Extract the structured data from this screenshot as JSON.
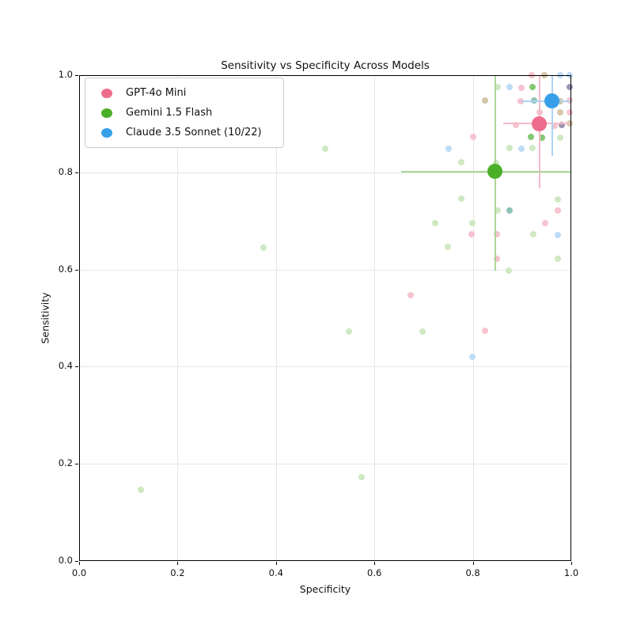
{
  "chart_data": {
    "type": "scatter",
    "title": "Sensitivity vs Specificity Across Models",
    "xlabel": "Specificity",
    "ylabel": "Sensitivity",
    "xlim": [
      0.0,
      1.0
    ],
    "ylim": [
      0.0,
      1.0
    ],
    "xticks": [
      "0.0",
      "0.2",
      "0.4",
      "0.6",
      "0.8",
      "1.0"
    ],
    "yticks": [
      "0.0",
      "0.2",
      "0.4",
      "0.6",
      "0.8",
      "1.0"
    ],
    "grid": true,
    "legend_position": "upper left",
    "series": [
      {
        "name": "GPT-4o Mini",
        "color": "#ee6d8c",
        "errbar_color": "#f6bac7",
        "mean": {
          "x": 0.935,
          "y": 0.9
        },
        "xerr": 0.073,
        "yerr": 0.133
      },
      {
        "name": "Gemini 1.5 Flash",
        "color": "#4caf28",
        "errbar_color": "#abd898",
        "mean": {
          "x": 0.845,
          "y": 0.802
        },
        "xerr": 0.19,
        "yerr": 0.205
      },
      {
        "name": "Claude 3.5 Sonnet (10/22)",
        "color": "#379fea",
        "errbar_color": "#aed2f2",
        "mean": {
          "x": 0.961,
          "y": 0.947
        },
        "xerr": 0.063,
        "yerr": 0.113
      }
    ],
    "point_colors": {
      "pink": "#f6c3cf",
      "green": "#cfe8c2",
      "green-dark": "#84c973",
      "blue": "#bedcf5",
      "tan": "#d3c7a9",
      "teal": "#8ec3b8",
      "slate": "#9c94b2"
    },
    "observations": [
      {
        "x": 0.92,
        "y": 1.0,
        "c": "pink"
      },
      {
        "x": 0.946,
        "y": 1.0,
        "c": "tan"
      },
      {
        "x": 0.978,
        "y": 1.0,
        "c": "blue"
      },
      {
        "x": 0.996,
        "y": 1.0,
        "c": "blue"
      },
      {
        "x": 0.85,
        "y": 0.975,
        "c": "green"
      },
      {
        "x": 0.874,
        "y": 0.975,
        "c": "blue"
      },
      {
        "x": 0.898,
        "y": 0.974,
        "c": "pink"
      },
      {
        "x": 0.922,
        "y": 0.975,
        "c": "green-dark"
      },
      {
        "x": 0.997,
        "y": 0.975,
        "c": "slate"
      },
      {
        "x": 0.825,
        "y": 0.948,
        "c": "tan"
      },
      {
        "x": 0.897,
        "y": 0.947,
        "c": "pink"
      },
      {
        "x": 0.924,
        "y": 0.948,
        "c": "teal"
      },
      {
        "x": 0.977,
        "y": 0.947,
        "c": "tan"
      },
      {
        "x": 0.997,
        "y": 0.948,
        "c": "pink"
      },
      {
        "x": 0.936,
        "y": 0.924,
        "c": "pink"
      },
      {
        "x": 0.977,
        "y": 0.923,
        "c": "tan"
      },
      {
        "x": 0.997,
        "y": 0.923,
        "c": "pink"
      },
      {
        "x": 0.888,
        "y": 0.897,
        "c": "pink"
      },
      {
        "x": 0.966,
        "y": 0.896,
        "c": "pink"
      },
      {
        "x": 0.98,
        "y": 0.897,
        "c": "slate"
      },
      {
        "x": 0.997,
        "y": 0.9,
        "c": "tan"
      },
      {
        "x": 0.8,
        "y": 0.873,
        "c": "pink"
      },
      {
        "x": 0.918,
        "y": 0.873,
        "c": "green-dark"
      },
      {
        "x": 0.941,
        "y": 0.871,
        "c": "green-dark"
      },
      {
        "x": 0.977,
        "y": 0.872,
        "c": "green"
      },
      {
        "x": 0.5,
        "y": 0.849,
        "c": "green"
      },
      {
        "x": 0.75,
        "y": 0.849,
        "c": "blue"
      },
      {
        "x": 0.875,
        "y": 0.85,
        "c": "green"
      },
      {
        "x": 0.898,
        "y": 0.848,
        "c": "blue"
      },
      {
        "x": 0.922,
        "y": 0.85,
        "c": "green"
      },
      {
        "x": 0.777,
        "y": 0.821,
        "c": "green"
      },
      {
        "x": 0.847,
        "y": 0.82,
        "c": "green"
      },
      {
        "x": 0.776,
        "y": 0.746,
        "c": "green"
      },
      {
        "x": 0.973,
        "y": 0.745,
        "c": "green"
      },
      {
        "x": 0.851,
        "y": 0.722,
        "c": "green"
      },
      {
        "x": 0.874,
        "y": 0.722,
        "c": "teal"
      },
      {
        "x": 0.973,
        "y": 0.722,
        "c": "pink"
      },
      {
        "x": 0.724,
        "y": 0.695,
        "c": "green"
      },
      {
        "x": 0.799,
        "y": 0.695,
        "c": "green"
      },
      {
        "x": 0.947,
        "y": 0.695,
        "c": "pink"
      },
      {
        "x": 0.798,
        "y": 0.672,
        "c": "pink"
      },
      {
        "x": 0.849,
        "y": 0.672,
        "c": "pink"
      },
      {
        "x": 0.923,
        "y": 0.672,
        "c": "green"
      },
      {
        "x": 0.973,
        "y": 0.671,
        "c": "blue"
      },
      {
        "x": 0.375,
        "y": 0.645,
        "c": "green"
      },
      {
        "x": 0.749,
        "y": 0.646,
        "c": "green"
      },
      {
        "x": 0.849,
        "y": 0.622,
        "c": "pink"
      },
      {
        "x": 0.973,
        "y": 0.622,
        "c": "green"
      },
      {
        "x": 0.873,
        "y": 0.597,
        "c": "green"
      },
      {
        "x": 0.674,
        "y": 0.547,
        "c": "pink"
      },
      {
        "x": 0.548,
        "y": 0.472,
        "c": "green"
      },
      {
        "x": 0.698,
        "y": 0.472,
        "c": "green"
      },
      {
        "x": 0.825,
        "y": 0.474,
        "c": "pink"
      },
      {
        "x": 0.799,
        "y": 0.42,
        "c": "blue"
      },
      {
        "x": 0.574,
        "y": 0.173,
        "c": "green"
      },
      {
        "x": 0.125,
        "y": 0.146,
        "c": "green"
      }
    ]
  }
}
